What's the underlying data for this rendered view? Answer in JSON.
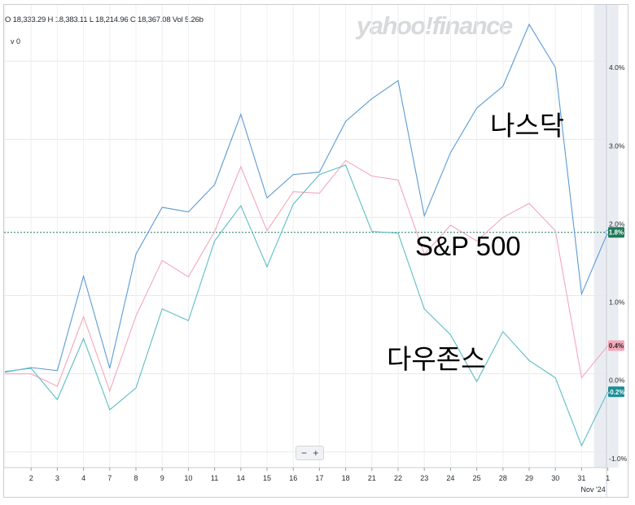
{
  "header": {
    "ohlc": "O 18,333.29  H 18,383.11  L 18,214.96  C 18,367.08  Vol 5.26b",
    "sub": "v 0",
    "watermark": "yahoo!finance"
  },
  "zoom_controls": {
    "minus": "−",
    "plus": "+"
  },
  "annotations": {
    "nasdaq": "나스닥",
    "sp500": "S&P 500",
    "dow": "다우존스"
  },
  "chart_data": {
    "type": "line",
    "x": [
      "1",
      "2",
      "3",
      "4",
      "7",
      "8",
      "9",
      "10",
      "11",
      "14",
      "15",
      "16",
      "17",
      "18",
      "21",
      "22",
      "23",
      "24",
      "25",
      "28",
      "29",
      "30",
      "31",
      "1"
    ],
    "x_tick_labels": [
      "2",
      "3",
      "4",
      "7",
      "8",
      "9",
      "10",
      "11",
      "14",
      "15",
      "16",
      "17",
      "18",
      "21",
      "22",
      "23",
      "24",
      "25",
      "28",
      "29",
      "30",
      "31",
      "1"
    ],
    "x_sub_label": "Nov '24",
    "series": [
      {
        "name": "나스닥",
        "color": "#5b9bd5",
        "values": [
          0.02,
          0.08,
          0.04,
          1.25,
          0.07,
          1.53,
          2.13,
          2.07,
          2.42,
          3.32,
          2.25,
          2.55,
          2.58,
          3.23,
          3.52,
          3.75,
          2.02,
          2.83,
          3.4,
          3.68,
          4.47,
          3.92,
          1.02,
          1.81
        ]
      },
      {
        "name": "S&P 500",
        "color": "#f4a7b9",
        "values": [
          0.0,
          0.0,
          -0.16,
          0.73,
          -0.22,
          0.74,
          1.45,
          1.24,
          1.82,
          2.65,
          1.83,
          2.33,
          2.31,
          2.73,
          2.53,
          2.48,
          1.53,
          1.9,
          1.7,
          2.0,
          2.18,
          1.83,
          -0.05,
          0.36
        ]
      },
      {
        "name": "다우존스",
        "color": "#5fbdc6",
        "values": [
          0.03,
          0.07,
          -0.33,
          0.45,
          -0.46,
          -0.18,
          0.83,
          0.68,
          1.7,
          2.15,
          1.37,
          2.17,
          2.55,
          2.67,
          1.82,
          1.8,
          0.83,
          0.5,
          -0.1,
          0.54,
          0.17,
          -0.05,
          -0.92,
          -0.23
        ]
      }
    ],
    "y_ticks": [
      "-1.0%",
      "0.0%",
      "1.0%",
      "2.0%",
      "3.0%",
      "4.0%"
    ],
    "y_tick_values": [
      -1,
      0,
      1,
      2,
      3,
      4
    ],
    "ylim": [
      -1.2,
      4.72
    ],
    "reference_line": {
      "value": 1.81,
      "color": "#1f7a59"
    },
    "end_badges": [
      {
        "series": "나스닥",
        "label": "1.8%",
        "value": 1.81,
        "bg": "#1f7a59",
        "fg": "#ffffff"
      },
      {
        "series": "S&P 500",
        "label": "0.4%",
        "value": 0.36,
        "bg": "#f4a7b9",
        "fg": "#232a31"
      },
      {
        "series": "다우존스",
        "label": "-0.2%",
        "value": -0.23,
        "bg": "#1b8e96",
        "fg": "#ffffff"
      }
    ],
    "grid": true,
    "highlight_last_period": true
  }
}
